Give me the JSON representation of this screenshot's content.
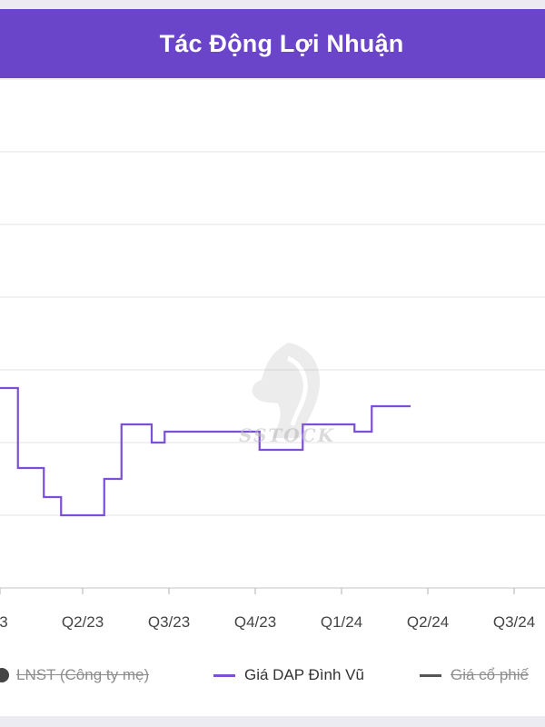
{
  "header": {
    "title": "Tác Động Lợi Nhuận",
    "color": "#6a45c9"
  },
  "watermark": {
    "text": "SSTOCK"
  },
  "legend": [
    {
      "label": "LNST (Công ty mẹ)",
      "hidden": true,
      "color": "#444444",
      "icon": "dot-icon"
    },
    {
      "label": "Giá DAP Đình Vũ",
      "hidden": false,
      "color": "#7b4fd6",
      "icon": "line-icon"
    },
    {
      "label": "Giá cổ phiế",
      "hidden": true,
      "color": "#555555",
      "icon": "line-icon"
    }
  ],
  "chart_data": {
    "type": "line",
    "step": true,
    "grid": true,
    "x_ticks": [
      "3",
      "Q2/23",
      "Q3/23",
      "Q4/23",
      "Q1/24",
      "Q2/24",
      "Q3/24"
    ],
    "ylim": [
      0,
      8
    ],
    "series": [
      {
        "name": "Giá DAP Đình Vũ",
        "color": "#7b4fd6",
        "points": [
          [
            -0.2,
            2.75
          ],
          [
            0.0,
            2.75
          ],
          [
            0.25,
            1.65
          ],
          [
            0.55,
            1.25
          ],
          [
            0.75,
            1.0
          ],
          [
            1.05,
            1.0
          ],
          [
            1.25,
            1.5
          ],
          [
            1.45,
            2.25
          ],
          [
            1.8,
            2.0
          ],
          [
            1.95,
            2.15
          ],
          [
            2.4,
            2.15
          ],
          [
            2.8,
            2.15
          ],
          [
            3.05,
            1.9
          ],
          [
            3.55,
            2.25
          ],
          [
            4.15,
            2.15
          ],
          [
            4.35,
            2.5
          ],
          [
            4.8,
            2.5
          ]
        ]
      }
    ]
  }
}
